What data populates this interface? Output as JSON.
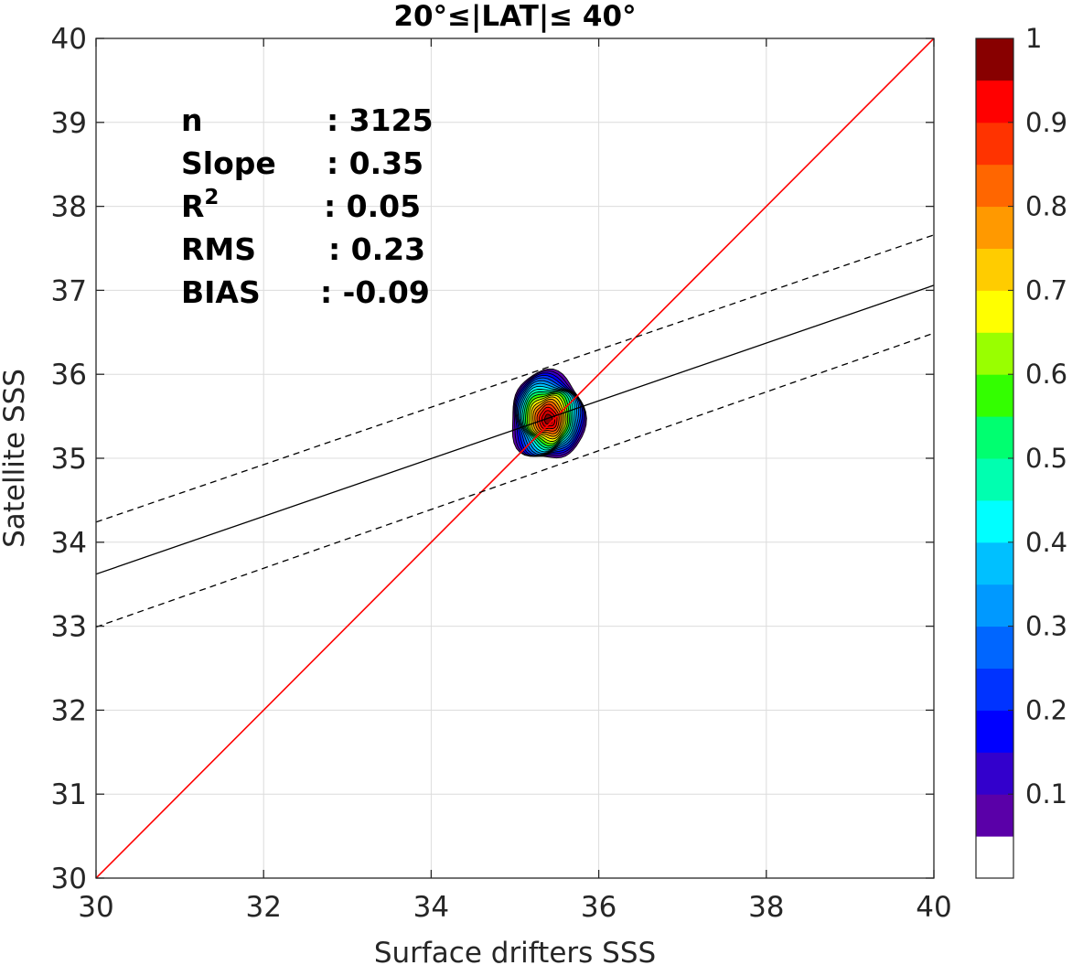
{
  "chart_data": {
    "type": "contour",
    "title": "20°≤|LAT|≤ 40°",
    "xlabel": "Surface drifters SSS",
    "ylabel": "Satellite SSS",
    "xlim": [
      30,
      40
    ],
    "ylim": [
      30,
      40
    ],
    "xticks": [
      "30",
      "32",
      "34",
      "36",
      "38",
      "40"
    ],
    "yticks": [
      "30",
      "31",
      "32",
      "33",
      "34",
      "35",
      "36",
      "37",
      "38",
      "39",
      "40"
    ],
    "grid": true,
    "stats": [
      {
        "name": "n",
        "value": ": 3125"
      },
      {
        "name": "Slope",
        "value": ": 0.35"
      },
      {
        "name": "R",
        "sup": "2",
        "value": ": 0.05"
      },
      {
        "name": "RMS",
        "value": ": 0.23"
      },
      {
        "name": "BIAS",
        "value": ": -0.09"
      }
    ],
    "lines": [
      {
        "kind": "identity",
        "color": "#ff0000",
        "style": "solid",
        "from": [
          30,
          30
        ],
        "to": [
          40,
          40
        ]
      },
      {
        "kind": "regression",
        "color": "#000000",
        "style": "solid",
        "from": [
          30,
          33.62
        ],
        "to": [
          40,
          37.06
        ]
      },
      {
        "kind": "regression-upper",
        "color": "#000000",
        "style": "dashed",
        "from": [
          30,
          34.24
        ],
        "to": [
          40,
          37.66
        ]
      },
      {
        "kind": "regression-lower",
        "color": "#000000",
        "style": "dashed",
        "from": [
          30,
          32.99
        ],
        "to": [
          40,
          36.49
        ]
      }
    ],
    "density_center": [
      35.4,
      35.46
    ],
    "density_extent": {
      "x": [
        34.95,
        35.83
      ],
      "y": [
        34.93,
        36.02
      ]
    },
    "colorbar": {
      "ticks": [
        "0.1",
        "0.2",
        "0.3",
        "0.4",
        "0.5",
        "0.6",
        "0.7",
        "0.8",
        "0.9",
        "1"
      ],
      "levels": 20,
      "colors": [
        "#ffffff",
        "#5a00a8",
        "#3300cc",
        "#0000ff",
        "#0033ff",
        "#0066ff",
        "#0099ff",
        "#00c0ff",
        "#00ffff",
        "#00ffb0",
        "#00ff70",
        "#33ff00",
        "#99ff00",
        "#ffff00",
        "#ffcc00",
        "#ff9900",
        "#ff6600",
        "#ff3300",
        "#ff0000",
        "#cc0000",
        "#880000"
      ]
    }
  }
}
